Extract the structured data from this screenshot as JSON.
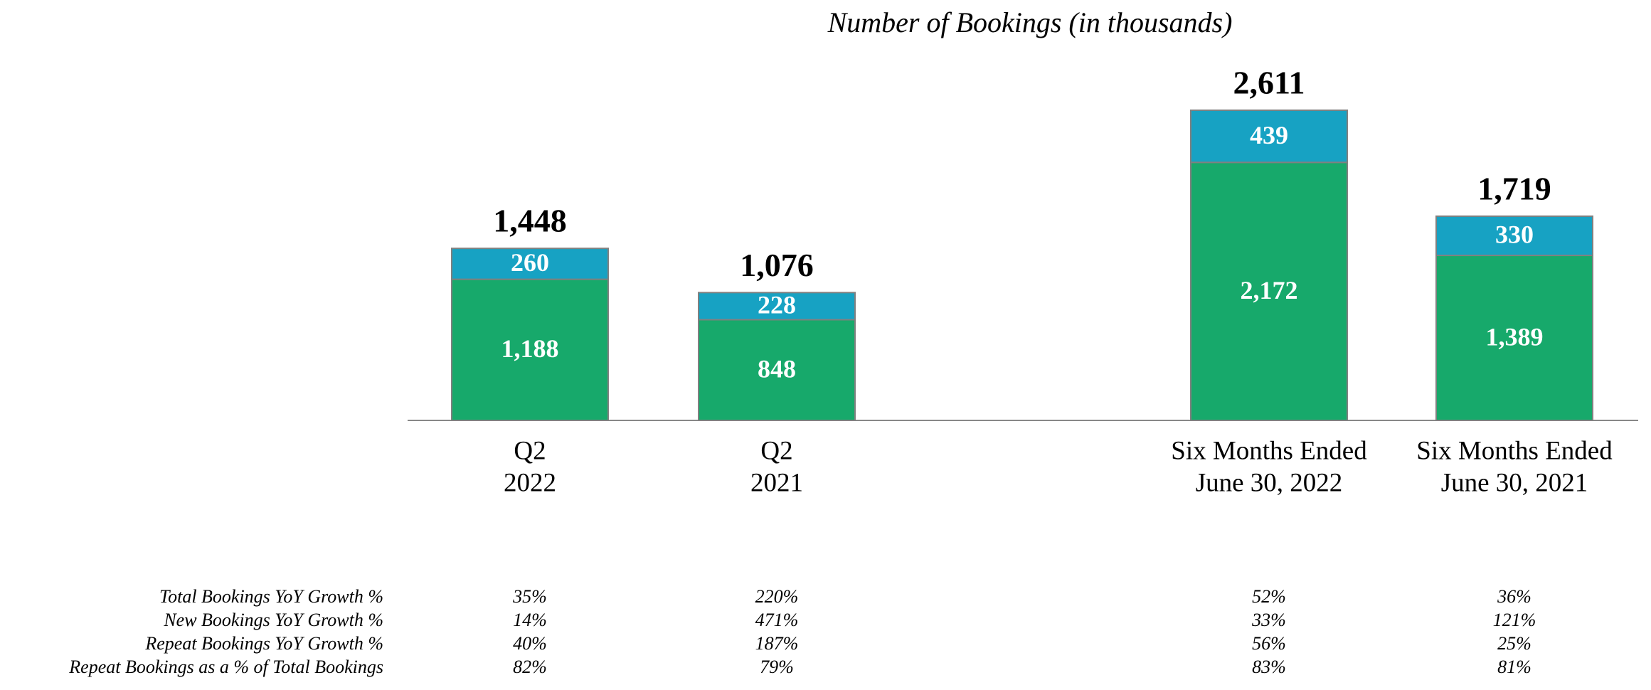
{
  "chart_data": {
    "type": "stacked_bar",
    "title": "Number of Bookings (in thousands)",
    "categories": [
      [
        "Q2",
        "2022"
      ],
      [
        "Q2",
        "2021"
      ],
      [
        "Six Months Ended",
        "June 30, 2022"
      ],
      [
        "Six Months Ended",
        "June 30, 2021"
      ]
    ],
    "series": [
      {
        "color": "#17a96b",
        "values": [
          1188,
          848,
          2172,
          1389
        ],
        "value_labels": [
          "1,188",
          "848",
          "2,172",
          "1,389"
        ]
      },
      {
        "color": "#17a2c3",
        "values": [
          260,
          228,
          439,
          330
        ],
        "value_labels": [
          "260",
          "228",
          "439",
          "330"
        ]
      }
    ],
    "totals": {
      "values": [
        1448,
        1076,
        2611,
        1719
      ],
      "value_labels": [
        "1,448",
        "1,076",
        "2,611",
        "1,719"
      ]
    },
    "ylim": [
      0,
      3000
    ]
  },
  "table": {
    "rows": [
      {
        "label": "Total Bookings YoY Growth %",
        "cells": [
          "35%",
          "220%",
          "52%",
          "36%"
        ]
      },
      {
        "label": "New Bookings YoY Growth %",
        "cells": [
          "14%",
          "471%",
          "33%",
          "121%"
        ]
      },
      {
        "label": "Repeat Bookings YoY Growth %",
        "cells": [
          "40%",
          "187%",
          "56%",
          "25%"
        ]
      },
      {
        "label": "Repeat Bookings as a % of Total Bookings",
        "cells": [
          "82%",
          "79%",
          "83%",
          "81%"
        ]
      }
    ]
  }
}
